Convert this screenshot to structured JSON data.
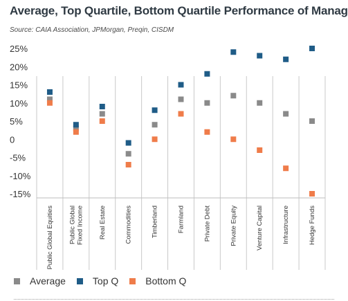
{
  "title": "Average, Top Quartile, Bottom Quartile Performance of Managers",
  "source": "Source: CAIA Association, JPMorgan, Preqin, CISDM",
  "colors": {
    "average": "#8a8a8a",
    "top": "#1f5c87",
    "bottom": "#ef7c4a"
  },
  "chart_data": {
    "type": "scatter",
    "categories": [
      "Public Global Equities",
      "Public Global Fixed Income",
      "Real Estate",
      "Commodities",
      "Timberland",
      "Farmland",
      "Private Debt",
      "Private Equity",
      "Venture Capital",
      "Infrastructure",
      "Hedge Funds"
    ],
    "category_lines": [
      [
        "Public Global Equities"
      ],
      [
        "Public Global",
        "Fixed Income"
      ],
      [
        "Real Estate"
      ],
      [
        "Commodities"
      ],
      [
        "Timberland"
      ],
      [
        "Farmland"
      ],
      [
        "Private Debt"
      ],
      [
        "Private Equity"
      ],
      [
        "Venture Capital"
      ],
      [
        "Infrastructure"
      ],
      [
        "Hedge Funds"
      ]
    ],
    "y_ticks": [
      "25%",
      "20%",
      "15%",
      "10%",
      "5%",
      "0",
      "-5%",
      "-10%",
      "-15%"
    ],
    "ylim": [
      -15,
      25
    ],
    "series": [
      {
        "name": "Average",
        "key": "average",
        "values": [
          11,
          3,
          7,
          -4,
          4,
          11,
          10,
          12,
          10,
          7,
          5
        ]
      },
      {
        "name": "Top Q",
        "key": "top",
        "values": [
          13,
          4,
          9,
          -1,
          8,
          15,
          18,
          24,
          23,
          22,
          25
        ]
      },
      {
        "name": "Bottom Q",
        "key": "bottom",
        "values": [
          10,
          2,
          5,
          -7,
          0,
          7,
          2,
          0,
          -3,
          -8,
          -15
        ]
      }
    ],
    "legend_position": "bottom-left",
    "grid": false
  }
}
